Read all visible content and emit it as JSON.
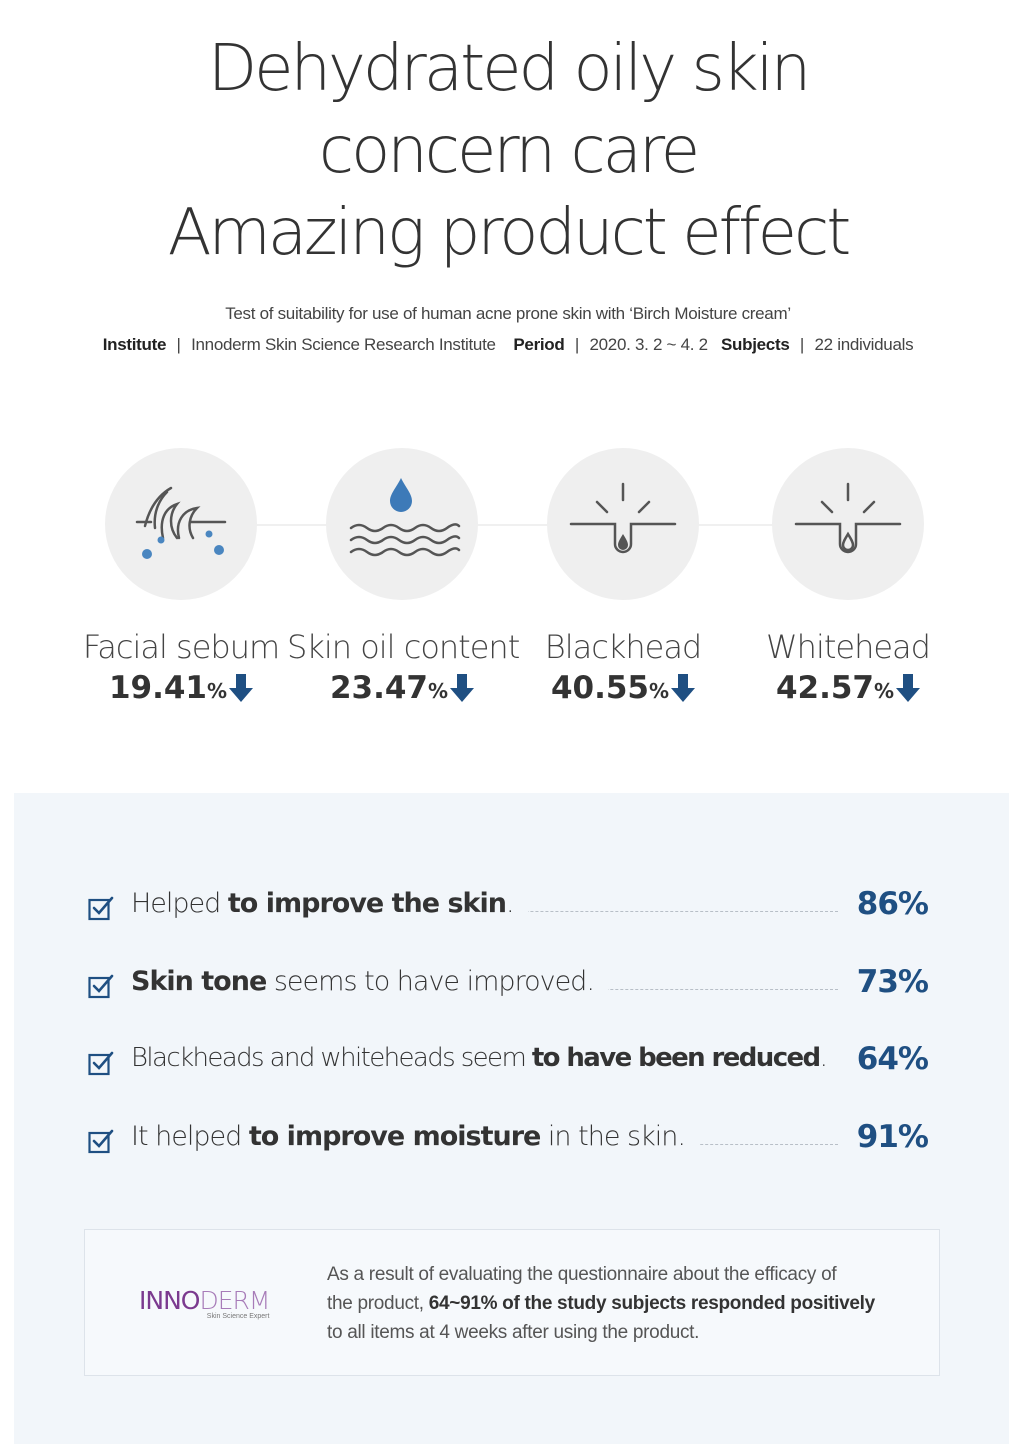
{
  "headline": {
    "line1": "Dehydrated oily skin",
    "line2": "concern care",
    "line3": "Amazing product effect"
  },
  "test": {
    "description": "Test of suitability for use of human acne prone skin with ‘Birch Moisture cream’",
    "institute_label": "Institute",
    "institute_value": "Innoderm Skin Science Research Institute",
    "period_label": "Period",
    "period_value": "2020. 3. 2 ~ 4. 2",
    "subjects_label": "Subjects",
    "subjects_value": "22 individuals",
    "separator": "|"
  },
  "stats": [
    {
      "label": "Facial sebum",
      "value": "19.41",
      "unit": "%",
      "icon": "hair-follicle-sebum-icon"
    },
    {
      "label": "Skin oil content",
      "value": "23.47",
      "unit": "%",
      "icon": "oil-drop-waves-icon"
    },
    {
      "label": "Blackhead",
      "value": "40.55",
      "unit": "%",
      "icon": "blackhead-pore-icon"
    },
    {
      "label": "Whitehead",
      "value": "42.57",
      "unit": "%",
      "icon": "whitehead-pore-icon"
    }
  ],
  "survey": [
    {
      "pre": "Helped ",
      "bold": "to improve the skin",
      "post": ".",
      "percent": "86%"
    },
    {
      "pre": "",
      "bold": "Skin tone",
      "post": " seems to have improved.",
      "percent": "73%"
    },
    {
      "pre": "Blackheads and whiteheads seem ",
      "bold": "to have been reduced",
      "post": ".",
      "percent": "64%"
    },
    {
      "pre": "It helped ",
      "bold": "to improve moisture",
      "post": " in the skin.",
      "percent": "91%"
    }
  ],
  "conclusion": {
    "line1": "As a result of evaluating the questionnaire about the efficacy of",
    "line2_pre": "the product, ",
    "line2_bold": "64~91% of the study subjects responded positively",
    "line3": "to all items at 4 weeks after using the product."
  },
  "logo": {
    "name_main": "INNO",
    "name_rest": "DERM",
    "tagline": "Skin Science Expert"
  },
  "colors": {
    "accent_blue": "#1f4f82",
    "icon_blue": "#3d7ab8",
    "logo_purple": "#7b3a8f",
    "panel_bg": "#f2f6fa"
  }
}
